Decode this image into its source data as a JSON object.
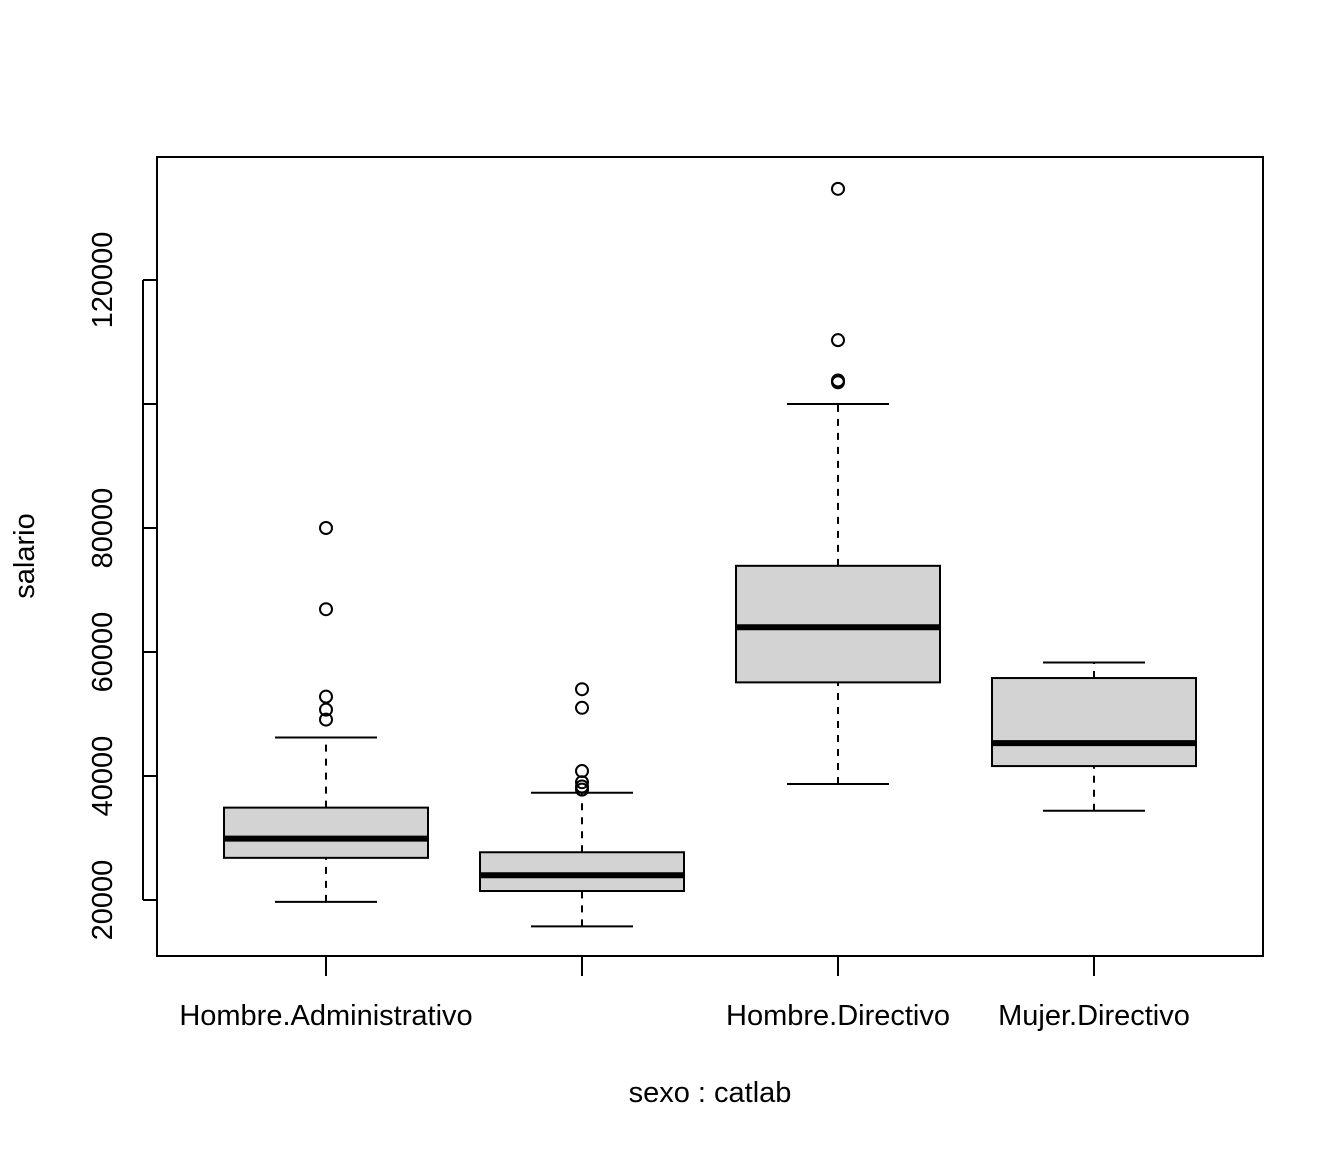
{
  "chart_data": {
    "type": "boxplot",
    "xlabel": "sexo : catlab",
    "ylabel": "salario",
    "ylim": [
      12000,
      137000
    ],
    "yticks": [
      20000,
      40000,
      60000,
      80000,
      100000,
      120000
    ],
    "ytick_labels": [
      "20000",
      "40000",
      "60000",
      "80000",
      "",
      "120000"
    ],
    "category_labels": [
      "Hombre.Administrativo",
      "",
      "Hombre.Directivo",
      "Mujer.Directivo"
    ],
    "box_fill": "#d3d3d3",
    "stroke_color": "#000000",
    "boxes": [
      {
        "whisker_low": 19700,
        "q1": 26800,
        "median": 29900,
        "q3": 34900,
        "whisker_high": 46200,
        "outliers": [
          49100,
          50700,
          52800,
          66900,
          80000
        ]
      },
      {
        "whisker_low": 15750,
        "q1": 21450,
        "median": 24000,
        "q3": 27700,
        "whisker_high": 37300,
        "outliers": [
          37800,
          38300,
          39000,
          40800,
          51000,
          54000
        ]
      },
      {
        "whisker_low": 38700,
        "q1": 55100,
        "median": 64000,
        "q3": 73900,
        "whisker_high": 100000,
        "outliers": [
          103500,
          103800,
          110300,
          134700
        ]
      },
      {
        "whisker_low": 34400,
        "q1": 41600,
        "median": 45300,
        "q3": 55800,
        "whisker_high": 58300,
        "outliers": []
      }
    ]
  }
}
